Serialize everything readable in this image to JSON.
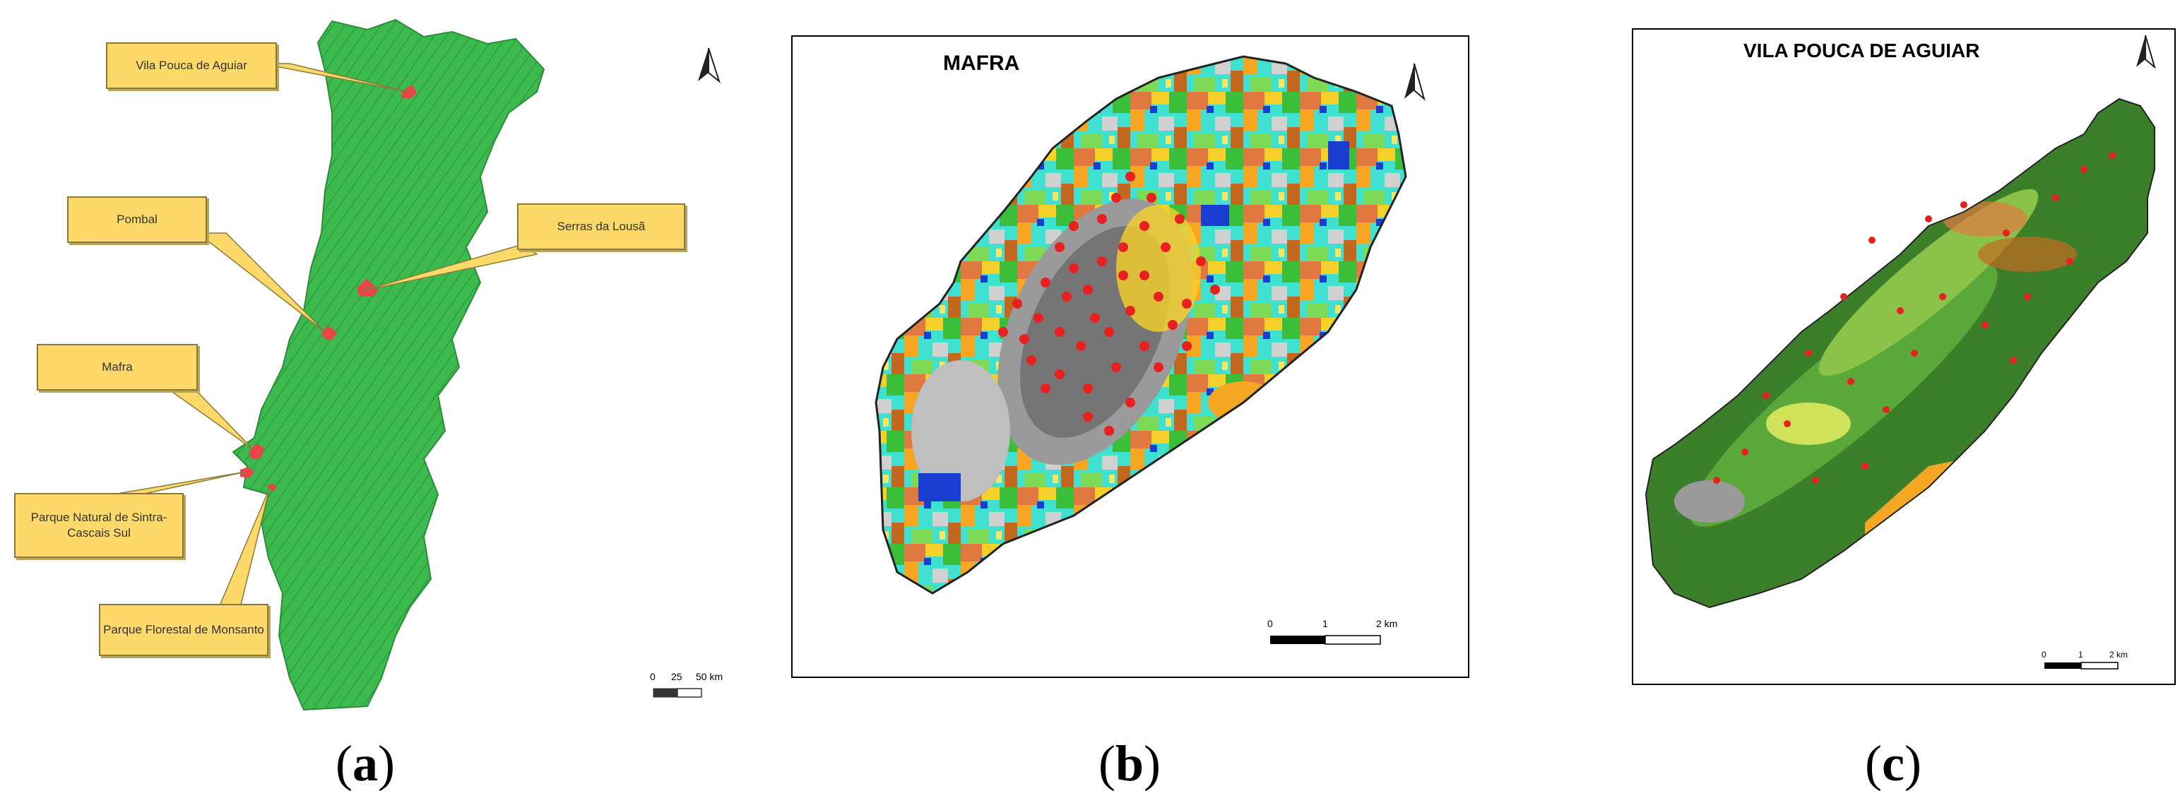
{
  "panel_a": {
    "callouts": {
      "vila_pouca": "Vila Pouca de Aguiar",
      "pombal": "Pombal",
      "serras_lousa": "Serras da Lousã",
      "mafra": "Mafra",
      "sintra": "Parque Natural de Sintra-Cascais Sul",
      "monsanto": "Parque Florestal de Monsanto"
    },
    "scale": {
      "t0": "0",
      "t1": "25",
      "t2": "50 km"
    },
    "caption_open": "(",
    "caption_letter": "a",
    "caption_close": ")"
  },
  "panel_b": {
    "title": "MAFRA",
    "scale": {
      "t0": "0",
      "t1": "1",
      "t2": "2 km"
    },
    "caption_open": "(",
    "caption_letter": "b",
    "caption_close": ")"
  },
  "panel_c": {
    "title": "VILA POUCA DE AGUIAR",
    "scale": {
      "t0": "0",
      "t1": "1",
      "t2": "2 km"
    },
    "caption_open": "(",
    "caption_letter": "c",
    "caption_close": ")"
  },
  "colors": {
    "portugal_fill": "#39b54a",
    "site_marker": "#e8454a",
    "callout_fill": "#fdd96a",
    "water_blue": "#1a3fd0",
    "cyan": "#3fe0d0",
    "orange_patch": "#f5a623",
    "dark_green": "#3c7f2a"
  }
}
